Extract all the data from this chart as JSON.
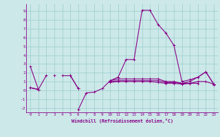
{
  "x": [
    0,
    1,
    2,
    3,
    4,
    5,
    6,
    7,
    8,
    9,
    10,
    11,
    12,
    13,
    14,
    15,
    16,
    17,
    18,
    19,
    20,
    21,
    22,
    23
  ],
  "line1": [
    2.7,
    0.1,
    null,
    null,
    null,
    null,
    -2.2,
    -0.3,
    -0.2,
    0.2,
    1.1,
    1.5,
    3.5,
    3.5,
    9.1,
    9.1,
    7.5,
    6.5,
    5.1,
    1.0,
    1.2,
    1.5,
    2.1,
    0.7
  ],
  "line2": [
    0.3,
    0.1,
    1.7,
    null,
    1.7,
    1.7,
    null,
    null,
    null,
    null,
    1.1,
    1.3,
    1.3,
    1.3,
    1.3,
    1.3,
    1.3,
    1.0,
    1.0,
    0.8,
    1.0,
    1.5,
    2.1,
    0.7
  ],
  "line3": [
    0.3,
    0.1,
    null,
    1.7,
    null,
    1.7,
    0.2,
    null,
    null,
    null,
    0.9,
    1.0,
    1.0,
    1.0,
    1.0,
    1.0,
    0.9,
    0.8,
    0.8,
    0.7,
    0.8,
    0.8,
    null,
    0.6
  ],
  "line4": [
    0.3,
    0.1,
    null,
    null,
    null,
    1.7,
    0.2,
    null,
    null,
    null,
    1.0,
    1.1,
    1.1,
    1.1,
    1.1,
    1.1,
    1.1,
    0.9,
    0.9,
    0.8,
    0.8,
    1.0,
    1.0,
    0.7
  ],
  "bg_color": "#cce8e8",
  "line_color": "#880088",
  "grid_color": "#99cccc",
  "xlabel": "Windchill (Refroidissement éolien,°C)",
  "ylim": [
    -2.5,
    9.8
  ],
  "xlim": [
    -0.5,
    23.5
  ],
  "xticks": [
    0,
    1,
    2,
    3,
    4,
    5,
    6,
    7,
    8,
    9,
    10,
    11,
    12,
    13,
    14,
    15,
    16,
    17,
    18,
    19,
    20,
    21,
    22,
    23
  ],
  "yticks": [
    -2,
    -1,
    0,
    1,
    2,
    3,
    4,
    5,
    6,
    7,
    8,
    9
  ]
}
